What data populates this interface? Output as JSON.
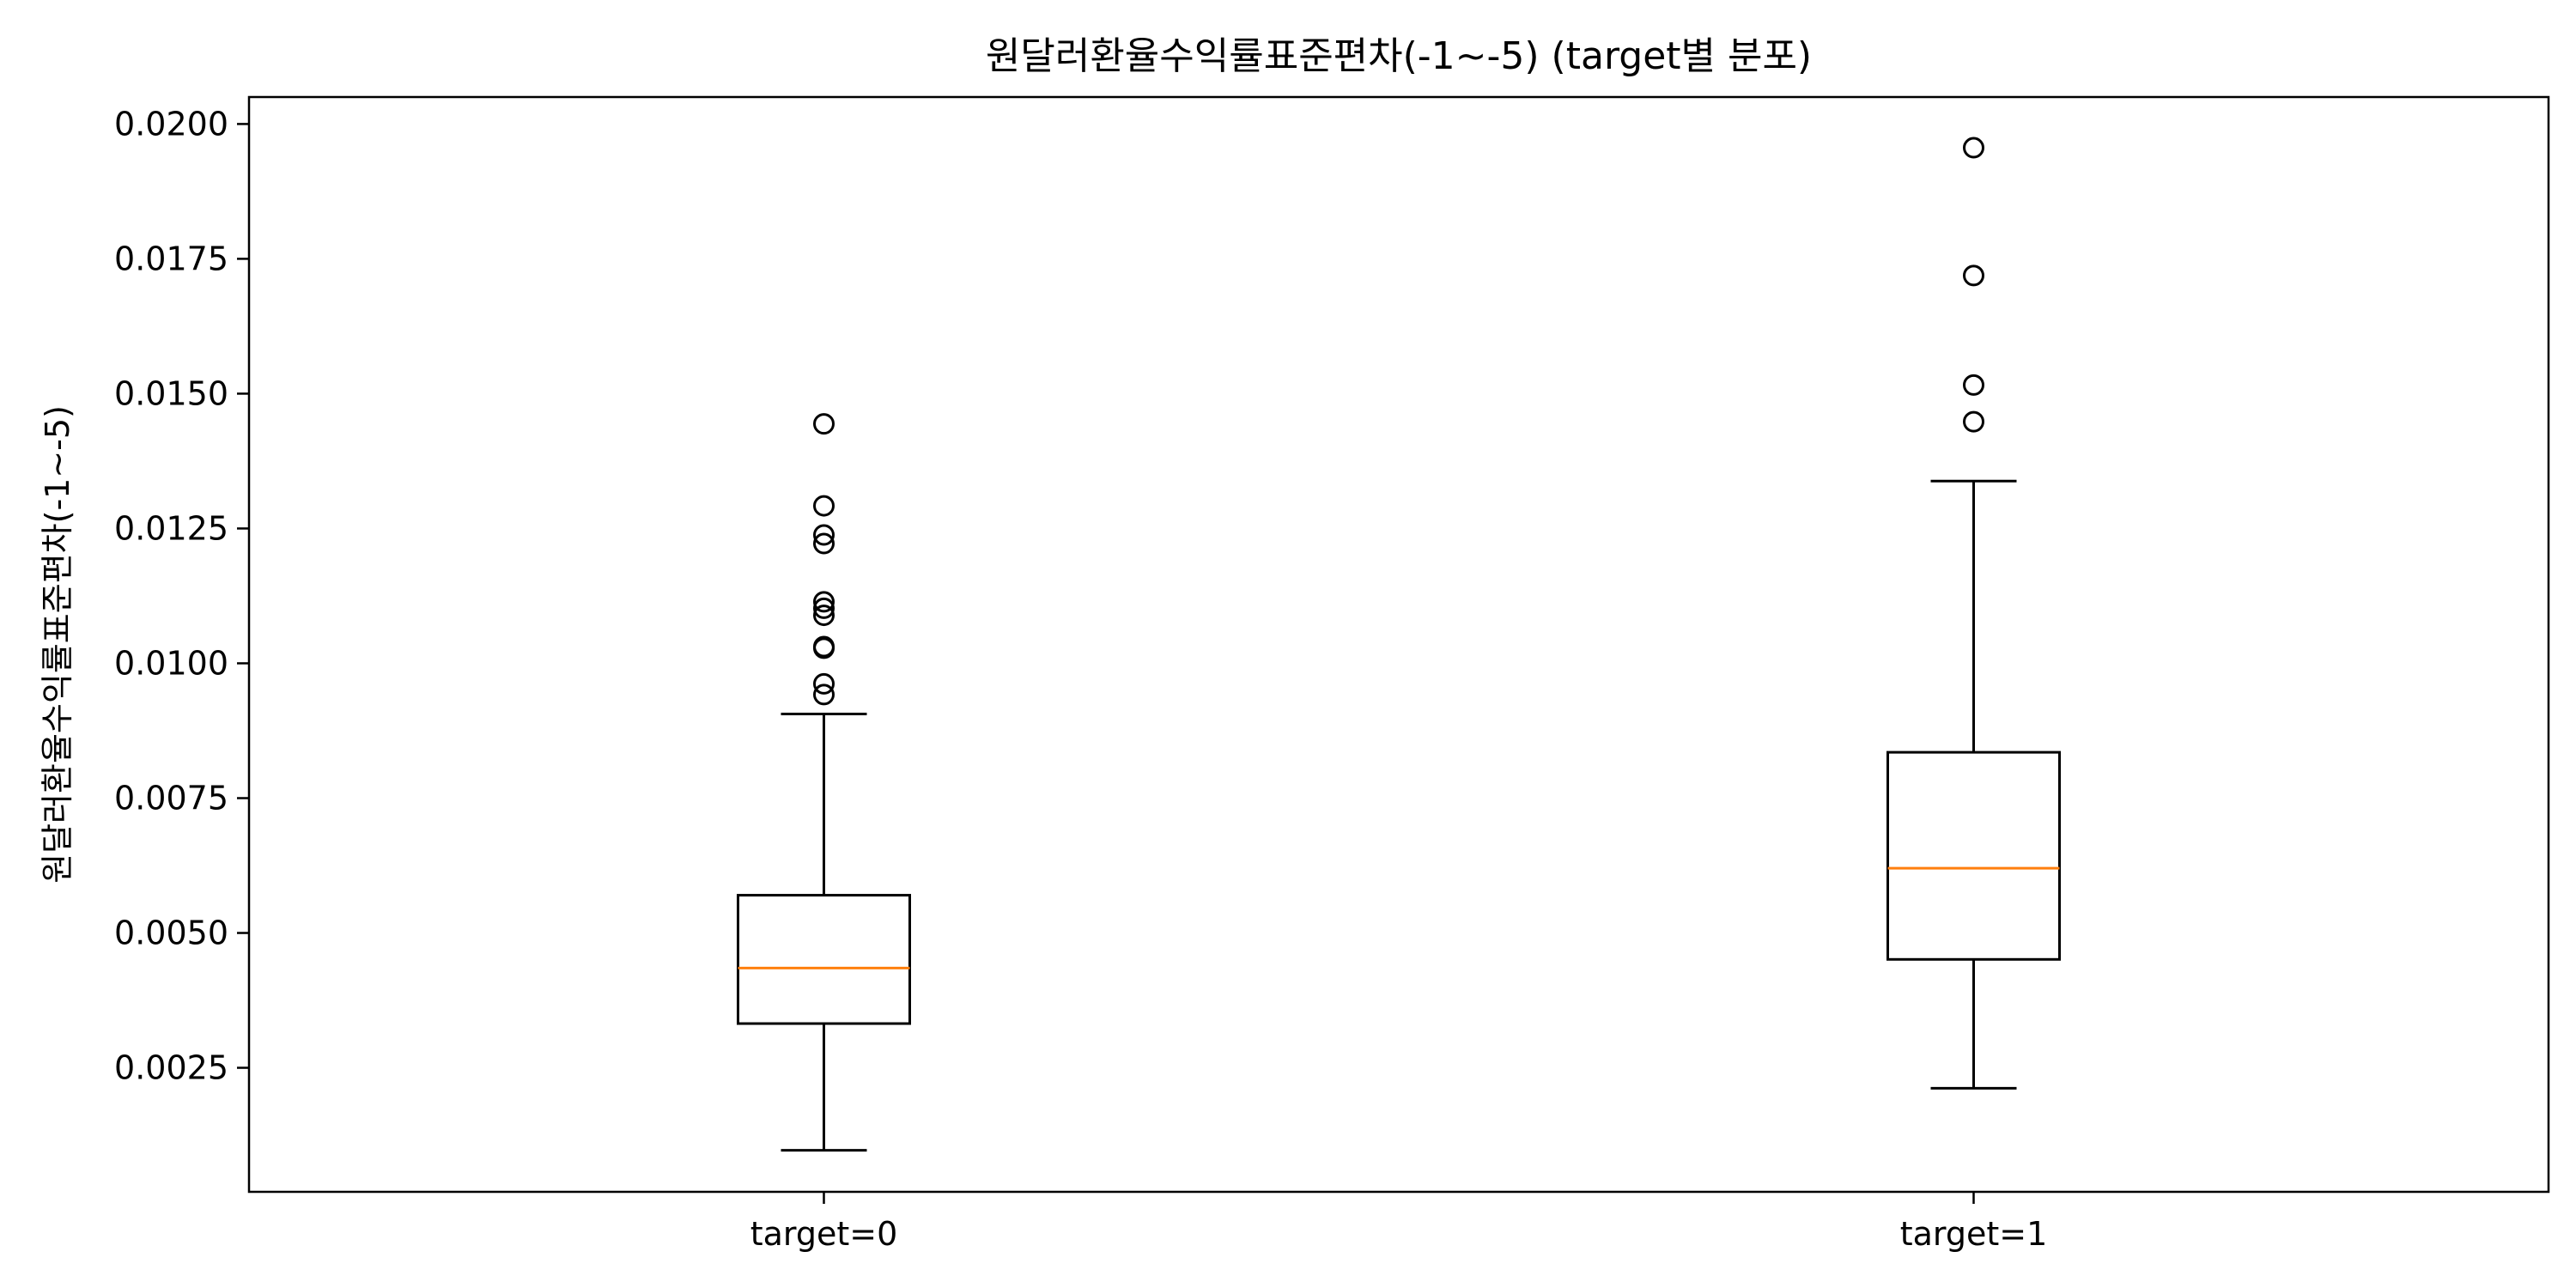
{
  "chart_data": {
    "type": "boxplot",
    "title": "원달러환율수익률표준편차(-1~-5) (target별 분포)",
    "xlabel": "",
    "ylabel": "원달러환율수익률표준편차(-1~-5)",
    "categories": [
      "target=0",
      "target=1"
    ],
    "ylim": [
      0.0002,
      0.0205
    ],
    "yticks": [
      0.0025,
      0.005,
      0.0075,
      0.01,
      0.0125,
      0.015,
      0.0175,
      0.02
    ],
    "ytick_labels": [
      "0.0025",
      "0.0050",
      "0.0075",
      "0.0100",
      "0.0125",
      "0.0150",
      "0.0175",
      "0.0200"
    ],
    "grid": false,
    "boxes": [
      {
        "category": "target=0",
        "whisker_low": 0.00097,
        "q1": 0.00332,
        "median": 0.00435,
        "q3": 0.0057,
        "whisker_high": 0.00906,
        "outliers": [
          0.00942,
          0.00962,
          0.01028,
          0.01031,
          0.01089,
          0.01102,
          0.01114,
          0.01222,
          0.01238,
          0.01292,
          0.01444
        ]
      },
      {
        "category": "target=1",
        "whisker_low": 0.00212,
        "q1": 0.00451,
        "median": 0.0062,
        "q3": 0.00835,
        "whisker_high": 0.01338,
        "outliers": [
          0.01448,
          0.01516,
          0.01719,
          0.01956
        ]
      }
    ],
    "colors": {
      "box": "#000000",
      "median": "#ff7f0e",
      "outlier": "#000000",
      "axes": "#000000"
    }
  }
}
